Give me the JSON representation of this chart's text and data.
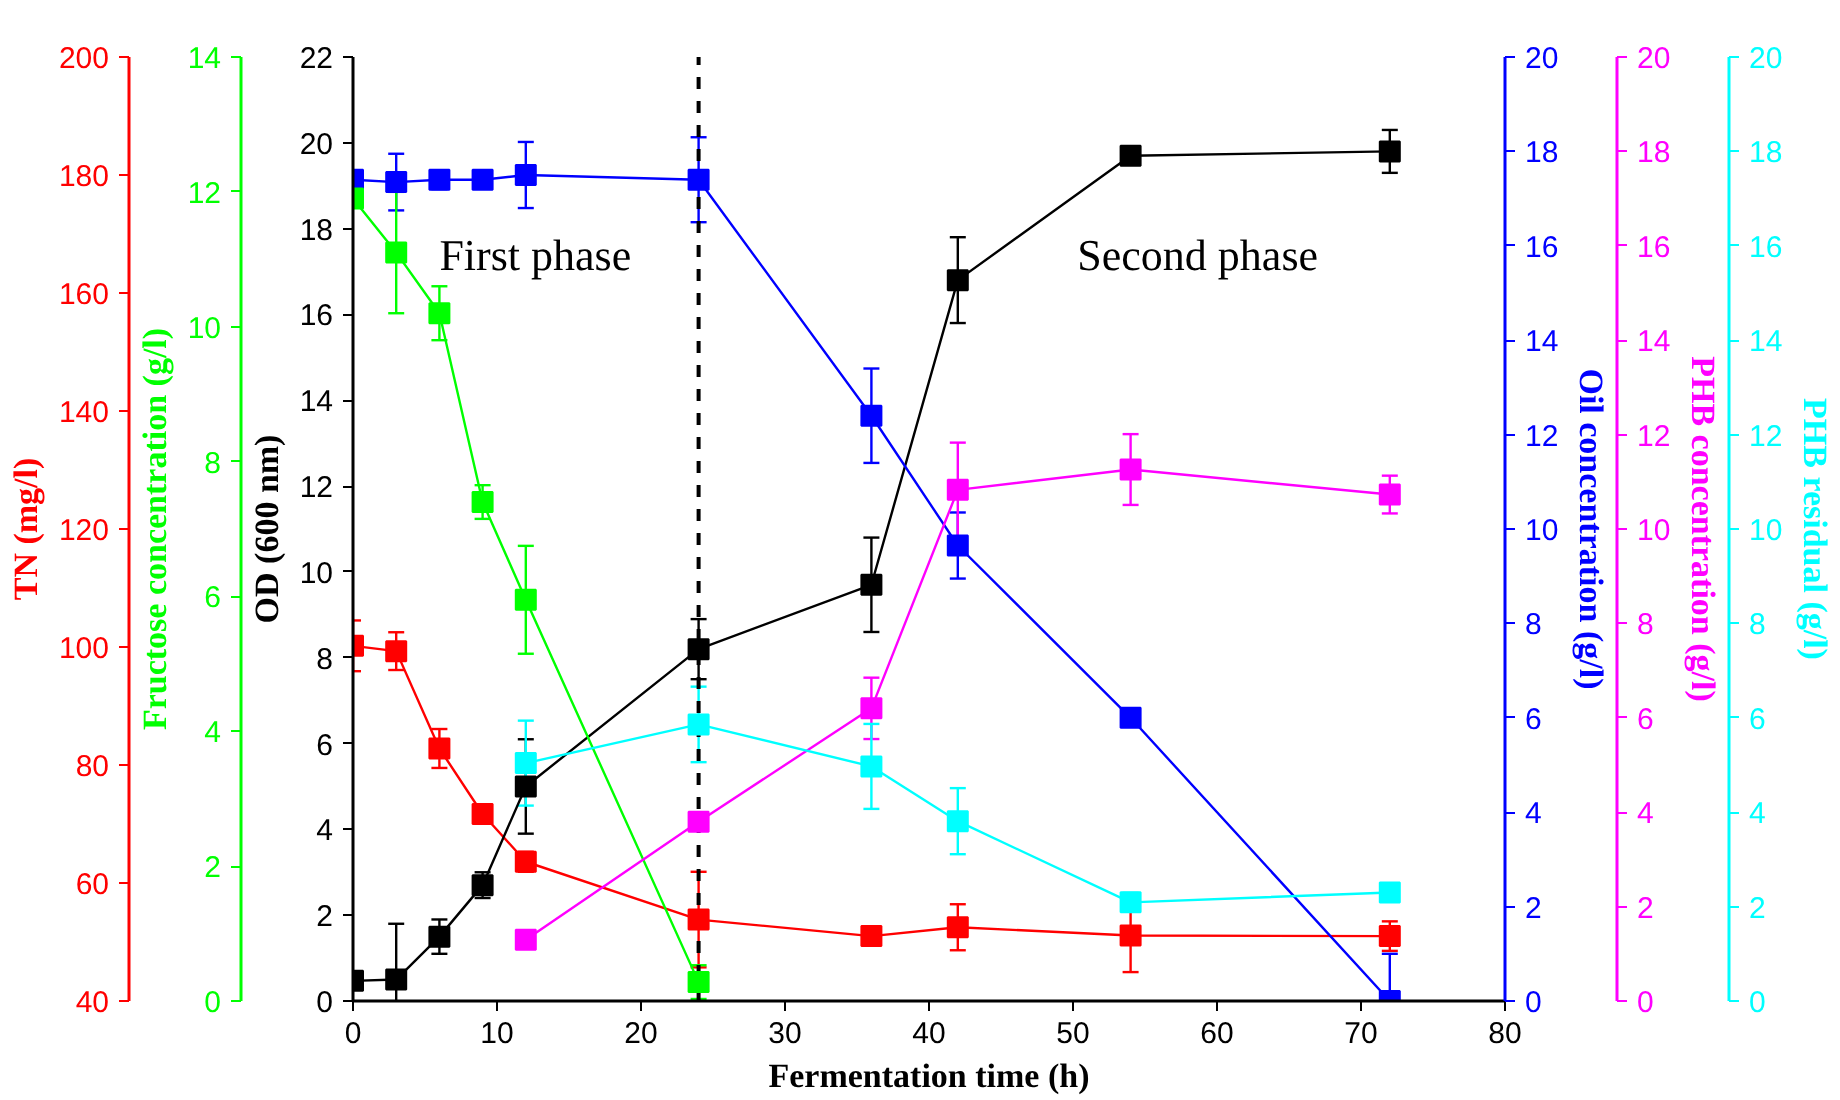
{
  "chart_data": [
    {
      "type": "line",
      "xlabel": "Fermentation time (h)",
      "ylabel": "OD (600 nm)",
      "y2label": "Oil concentration (g/l)",
      "y3label": "TN (mg/l)",
      "xlim": [
        0,
        80
      ],
      "xticks": [
        0,
        10,
        20,
        30,
        40,
        50,
        60,
        70,
        80
      ],
      "ylim": [
        0,
        22
      ],
      "yticks": [
        0,
        2,
        4,
        6,
        8,
        10,
        12,
        14,
        16,
        18,
        20,
        22
      ],
      "y2lim": [
        0,
        20
      ],
      "y2ticks": [
        0,
        2,
        4,
        6,
        8,
        10,
        12,
        14,
        16,
        18,
        20
      ],
      "y3lim": [
        40,
        200
      ],
      "y3ticks": [
        40,
        60,
        80,
        100,
        120,
        140,
        160,
        180,
        200
      ],
      "marker": "square",
      "line_style": "solid",
      "grid": false,
      "series": [
        {
          "color": "#ff0000",
          "axis": "y3",
          "x": [
            0,
            3,
            6,
            9,
            12,
            24,
            36,
            42,
            54,
            72
          ],
          "values": [
            100.2,
            99.3,
            82.8,
            71.7,
            63.6,
            53.8,
            51.0,
            52.5,
            51.1,
            51.0
          ],
          "errors": [
            4.3,
            3.2,
            3.3,
            null,
            1.7,
            8.1,
            null,
            3.9,
            6.2,
            2.5
          ]
        },
        {
          "color": "#000000",
          "x": [
            0,
            3,
            6,
            9,
            12,
            24,
            36,
            42,
            54,
            72
          ],
          "values": [
            0.47,
            0.5,
            1.5,
            2.7,
            5.0,
            8.2,
            9.7,
            16.8,
            19.7,
            19.8
          ],
          "errors": [
            null,
            1.3,
            0.4,
            0.3,
            1.1,
            0.7,
            1.1,
            1.0,
            0.2,
            0.5
          ]
        },
        {
          "color": "#0000ff",
          "axis": "y2",
          "x": [
            0,
            3,
            6,
            9,
            12,
            24,
            36,
            42,
            54,
            72
          ],
          "values": [
            17.4,
            17.35,
            17.4,
            17.4,
            17.5,
            17.4,
            12.4,
            9.65,
            6.0,
            0
          ],
          "errors": [
            0.2,
            0.6,
            0.2,
            null,
            0.7,
            0.9,
            1.0,
            0.7,
            null,
            1.0
          ]
        }
      ],
      "ref_lines": [
        {
          "axis": "x",
          "value": 24,
          "color": "#000000",
          "line_style": "dashed"
        }
      ],
      "annotations": [
        "First phase",
        "Second phase"
      ]
    },
    {
      "type": "line",
      "ylabel": "Fructose concentration (g/l)",
      "y2label": "PHB concentration (g/l)",
      "y3label": "PHB residual (g/l)",
      "xlim": [
        0,
        80
      ],
      "tick_labels": "y",
      "ylim": [
        0,
        14
      ],
      "yticks": [
        0,
        2,
        4,
        6,
        8,
        10,
        12,
        14
      ],
      "y2lim": [
        0,
        20
      ],
      "y2ticks": [
        0,
        2,
        4,
        6,
        8,
        10,
        12,
        14,
        16,
        18,
        20
      ],
      "y3lim": [
        0,
        20
      ],
      "y3ticks": [
        0,
        2,
        4,
        6,
        8,
        10,
        12,
        14,
        16,
        18,
        20
      ],
      "marker": "square",
      "line_style": "solid",
      "series": [
        {
          "color": "#00ff00",
          "x": [
            0,
            3,
            6,
            9,
            12,
            24
          ],
          "values": [
            11.9,
            11.1,
            10.2,
            7.4,
            5.95,
            0.28
          ],
          "errors": [
            null,
            0.9,
            0.4,
            0.25,
            0.8,
            0.25
          ]
        },
        {
          "color": "#ff00ff",
          "axis": "y2",
          "x": [
            12,
            24,
            36,
            42,
            54,
            72
          ],
          "values": [
            1.3,
            3.8,
            6.2,
            10.83,
            11.26,
            10.73
          ],
          "errors": [
            0.1,
            null,
            0.65,
            1.0,
            0.75,
            0.4
          ]
        },
        {
          "color": "#00ffff",
          "axis": "y3",
          "x": [
            12,
            24,
            36,
            42,
            54,
            72
          ],
          "values": [
            5.04,
            5.86,
            4.97,
            3.81,
            2.09,
            2.3
          ],
          "errors": [
            0.9,
            0.8,
            0.9,
            0.7,
            0.2,
            null
          ]
        }
      ]
    }
  ]
}
